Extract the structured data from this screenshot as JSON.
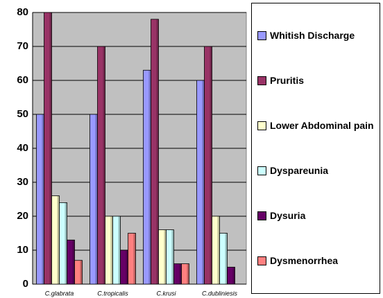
{
  "chart_data": {
    "type": "bar",
    "categories": [
      "C.glabrata",
      "C.tropicalis",
      "C.krusi",
      "C.dubliniesis"
    ],
    "series": [
      {
        "name": "Whitish Discharge",
        "color": "#9999ff",
        "values": [
          50,
          50,
          63,
          60
        ]
      },
      {
        "name": "Pruritis",
        "color": "#993366",
        "values": [
          80,
          70,
          78,
          70
        ]
      },
      {
        "name": "Lower Abdominal pain",
        "color": "#ffffcc",
        "values": [
          26,
          20,
          16,
          20
        ]
      },
      {
        "name": "Dyspareunia",
        "color": "#ccffff",
        "values": [
          24,
          20,
          16,
          15
        ]
      },
      {
        "name": "Dysuria",
        "color": "#660066",
        "values": [
          13,
          10,
          6,
          5
        ]
      },
      {
        "name": "Dysmenorrhea",
        "color": "#ff8080",
        "values": [
          7,
          15,
          6,
          0
        ]
      }
    ],
    "ylim": [
      0,
      80
    ],
    "yticks": [
      0,
      10,
      20,
      30,
      40,
      50,
      60,
      70,
      80
    ],
    "grid": true,
    "legend": "right"
  }
}
